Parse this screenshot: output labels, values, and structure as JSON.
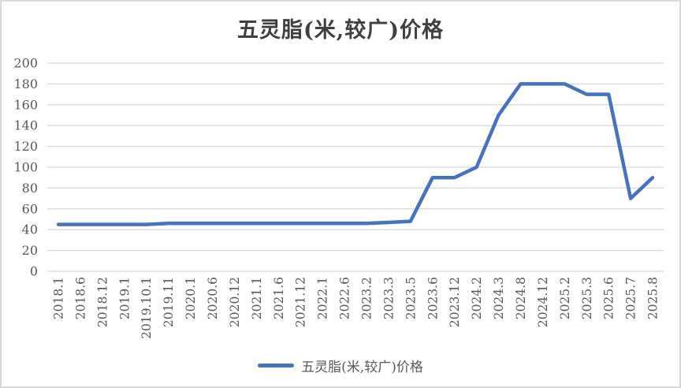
{
  "title": "五灵脂(米,较广)价格",
  "legend": {
    "label": "五灵脂(米,较广)价格"
  },
  "colors": {
    "series_line": "#4472C4",
    "gridline": "#D9D9D9",
    "axis_text": "#595959",
    "title_text": "#404040",
    "frame_border": "#D9D9D9",
    "background": "#FFFFFF"
  },
  "chart_data": {
    "type": "line",
    "title": "五灵脂(米,较广)价格",
    "categories": [
      "2018.1",
      "2018.6",
      "2018.12",
      "2019.1",
      "2019.10.1",
      "2019.11",
      "2020.1",
      "2020.6",
      "2020.12",
      "2021.1",
      "2021.6",
      "2021.12",
      "2022.1",
      "2022.6",
      "2023.2",
      "2023.3",
      "2023.5",
      "2023.6",
      "2023.12",
      "2024.2",
      "2024.3",
      "2024.8",
      "2024.12",
      "2025.2",
      "2025.3",
      "2025.6",
      "2025.7",
      "2025.8"
    ],
    "series": [
      {
        "name": "五灵脂(米,较广)价格",
        "values": [
          45,
          45,
          45,
          45,
          45,
          46,
          46,
          46,
          46,
          46,
          46,
          46,
          46,
          46,
          46,
          47,
          48,
          90,
          90,
          100,
          150,
          180,
          180,
          180,
          170,
          170,
          70,
          90
        ]
      }
    ],
    "xlabel": "",
    "ylabel": "",
    "ylim": [
      0,
      200
    ],
    "ytick_step": 20,
    "yticks": [
      0,
      20,
      40,
      60,
      80,
      100,
      120,
      140,
      160,
      180,
      200
    ],
    "grid": true,
    "x_label_rotation": -90,
    "legend_position": "bottom"
  }
}
